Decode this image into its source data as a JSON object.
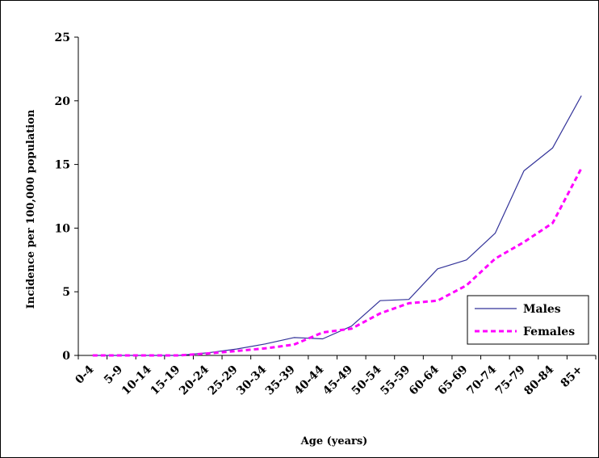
{
  "chart_data": {
    "type": "line",
    "title": "",
    "xlabel": "Age (years)",
    "ylabel": "Incidence per 100,000 population",
    "ylim": [
      0,
      25
    ],
    "yticks": [
      0,
      5,
      10,
      15,
      20,
      25
    ],
    "grid": false,
    "legend_position": "bottom-right",
    "categories": [
      "0-4",
      "5-9",
      "10-14",
      "15-19",
      "20-24",
      "25-29",
      "30-34",
      "35-39",
      "40-44",
      "45-49",
      "50-54",
      "55-59",
      "60-64",
      "65-69",
      "70-74",
      "75-79",
      "80-84",
      "85+"
    ],
    "series": [
      {
        "name": "Males",
        "color": "#333399",
        "style": "solid",
        "values": [
          0,
          0,
          0,
          0,
          0.2,
          0.5,
          0.9,
          1.4,
          1.3,
          2.3,
          4.3,
          4.4,
          6.8,
          7.5,
          9.6,
          14.5,
          16.3,
          20.4
        ]
      },
      {
        "name": "Females",
        "color": "#ff00ff",
        "style": "dashed",
        "values": [
          0,
          0,
          0,
          0,
          0.15,
          0.35,
          0.55,
          0.85,
          1.8,
          2.1,
          3.3,
          4.1,
          4.3,
          5.5,
          7.6,
          8.9,
          10.4,
          14.7
        ]
      }
    ]
  }
}
